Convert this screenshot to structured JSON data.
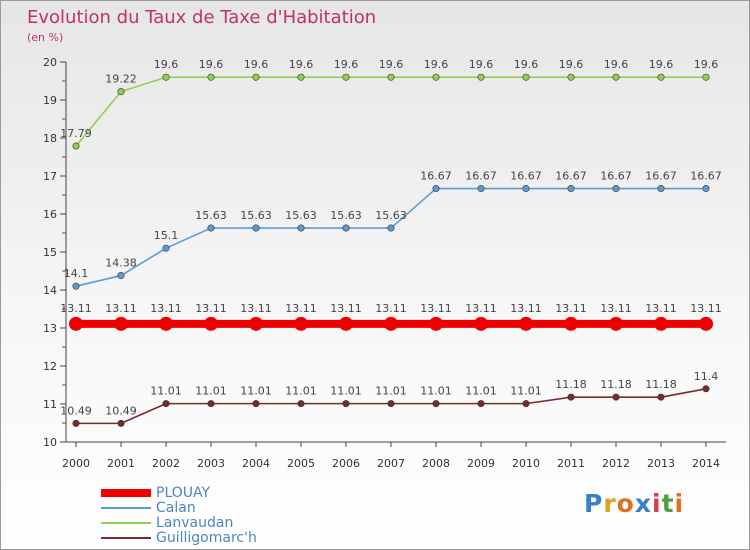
{
  "header": {
    "title": "Evolution du Taux de Taxe d'Habitation",
    "subtitle": "(en %)"
  },
  "brand": {
    "logo_text": "Proxiti",
    "letter_colors": [
      "#3a7fc9",
      "#e0a020",
      "#e07020",
      "#3a7fc9",
      "#d04050",
      "#4aa040",
      "#e07020"
    ]
  },
  "chart_data": {
    "type": "line",
    "x": [
      2000,
      2001,
      2002,
      2003,
      2004,
      2005,
      2006,
      2007,
      2008,
      2009,
      2010,
      2011,
      2012,
      2013,
      2014
    ],
    "x_tick_labels": [
      "2000",
      "2001",
      "2002",
      "2003",
      "2004",
      "2005",
      "2006",
      "2007",
      "2008",
      "2009",
      "2010",
      "2011",
      "2012",
      "2013",
      "2014"
    ],
    "ylim": [
      10,
      20
    ],
    "y_ticks": [
      "10",
      "11",
      "12",
      "13",
      "14",
      "15",
      "16",
      "17",
      "18",
      "19",
      "20"
    ],
    "grid": false,
    "legend_position": "bottom-left",
    "series": [
      {
        "name": "PLOUAY",
        "color": "#ee0000",
        "emphasis": true,
        "values": [
          13.11,
          13.11,
          13.11,
          13.11,
          13.11,
          13.11,
          13.11,
          13.11,
          13.11,
          13.11,
          13.11,
          13.11,
          13.11,
          13.11,
          13.11
        ],
        "labels": [
          "13.11",
          "13.11",
          "13.11",
          "13.11",
          "13.11",
          "13.11",
          "13.11",
          "13.11",
          "13.11",
          "13.11",
          "13.11",
          "13.11",
          "13.11",
          "13.11",
          "13.11"
        ]
      },
      {
        "name": "Calan",
        "color": "#5b9bd5",
        "values": [
          14.1,
          14.38,
          15.1,
          15.63,
          15.63,
          15.63,
          15.63,
          15.63,
          16.67,
          16.67,
          16.67,
          16.67,
          16.67,
          16.67,
          16.67
        ],
        "labels": [
          "14.1",
          "14.38",
          "15.1",
          "15.63",
          "15.63",
          "15.63",
          "15.63",
          "15.63",
          "16.67",
          "16.67",
          "16.67",
          "16.67",
          "16.67",
          "16.67",
          "16.67"
        ]
      },
      {
        "name": "Lanvaudan",
        "color": "#8fd14f",
        "values": [
          17.79,
          19.22,
          19.6,
          19.6,
          19.6,
          19.6,
          19.6,
          19.6,
          19.6,
          19.6,
          19.6,
          19.6,
          19.6,
          19.6,
          19.6
        ],
        "labels": [
          "17.79",
          "19.22",
          "19.6",
          "19.6",
          "19.6",
          "19.6",
          "19.6",
          "19.6",
          "19.6",
          "19.6",
          "19.6",
          "19.6",
          "19.6",
          "19.6",
          "19.6"
        ]
      },
      {
        "name": "Guilligomarc'h",
        "color": "#7b2a2a",
        "values": [
          10.49,
          10.49,
          11.01,
          11.01,
          11.01,
          11.01,
          11.01,
          11.01,
          11.01,
          11.01,
          11.01,
          11.18,
          11.18,
          11.18,
          11.4
        ],
        "labels": [
          "10.49",
          "10.49",
          "11.01",
          "11.01",
          "11.01",
          "11.01",
          "11.01",
          "11.01",
          "11.01",
          "11.01",
          "11.01",
          "11.18",
          "11.18",
          "11.18",
          "11.4"
        ]
      }
    ]
  }
}
